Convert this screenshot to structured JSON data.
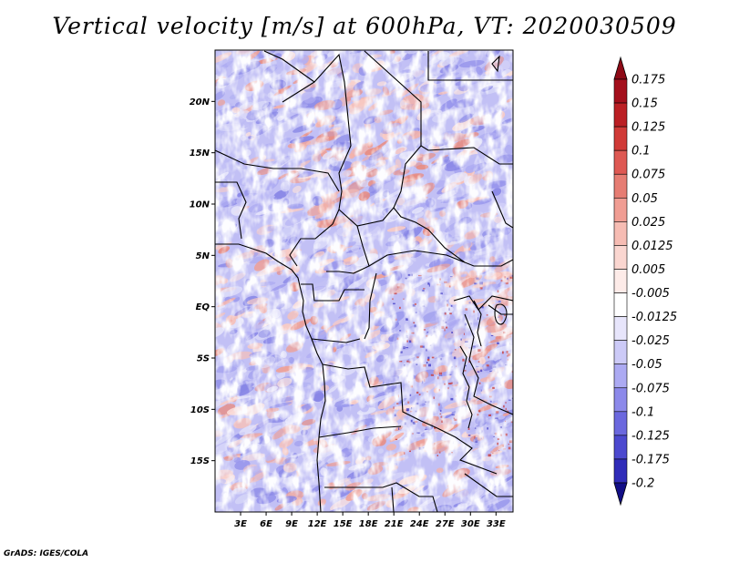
{
  "title": "Vertical velocity [m/s] at 600hPa, VT: 2020030509",
  "credit": "GrADS: IGES/COLA",
  "map": {
    "lon_range": [
      0,
      35
    ],
    "lat_range": [
      -20,
      25
    ],
    "lat_ticks": [
      {
        "value": 20,
        "label": "20N"
      },
      {
        "value": 15,
        "label": "15N"
      },
      {
        "value": 10,
        "label": "10N"
      },
      {
        "value": 5,
        "label": "5N"
      },
      {
        "value": 0,
        "label": "EQ"
      },
      {
        "value": -5,
        "label": "5S"
      },
      {
        "value": -10,
        "label": "10S"
      },
      {
        "value": -15,
        "label": "15S"
      }
    ],
    "lon_ticks": [
      {
        "value": 3,
        "label": "3E"
      },
      {
        "value": 6,
        "label": "6E"
      },
      {
        "value": 9,
        "label": "9E"
      },
      {
        "value": 12,
        "label": "12E"
      },
      {
        "value": 15,
        "label": "15E"
      },
      {
        "value": 18,
        "label": "18E"
      },
      {
        "value": 21,
        "label": "21E"
      },
      {
        "value": 24,
        "label": "24E"
      },
      {
        "value": 27,
        "label": "27E"
      },
      {
        "value": 30,
        "label": "30E"
      },
      {
        "value": 33,
        "label": "33E"
      }
    ]
  },
  "colorbar": {
    "levels": [
      {
        "label": "0.175",
        "color": "#a40f1c"
      },
      {
        "label": "0.15",
        "color": "#bb1f24"
      },
      {
        "label": "0.125",
        "color": "#d03a37"
      },
      {
        "label": "0.1",
        "color": "#de5953"
      },
      {
        "label": "0.075",
        "color": "#e67d73"
      },
      {
        "label": "0.05",
        "color": "#f09d93"
      },
      {
        "label": "0.025",
        "color": "#f6bcb3"
      },
      {
        "label": "0.0125",
        "color": "#fad6d0"
      },
      {
        "label": "0.005",
        "color": "#fdebe8"
      },
      {
        "label": "-0.005",
        "color": "#ffffff"
      },
      {
        "label": "-0.0125",
        "color": "#e7e5fb"
      },
      {
        "label": "-0.025",
        "color": "#cccaf7"
      },
      {
        "label": "-0.05",
        "color": "#acaaf2"
      },
      {
        "label": "-0.075",
        "color": "#8c89ea"
      },
      {
        "label": "-0.1",
        "color": "#6b68de"
      },
      {
        "label": "-0.125",
        "color": "#4c49cf"
      },
      {
        "label": "-0.175",
        "color": "#302cb9"
      },
      {
        "label": "-0.2",
        "color": "#1a16a0"
      }
    ],
    "top_arrow_color": "#8e0a16",
    "bottom_arrow_color": "#120e86"
  }
}
